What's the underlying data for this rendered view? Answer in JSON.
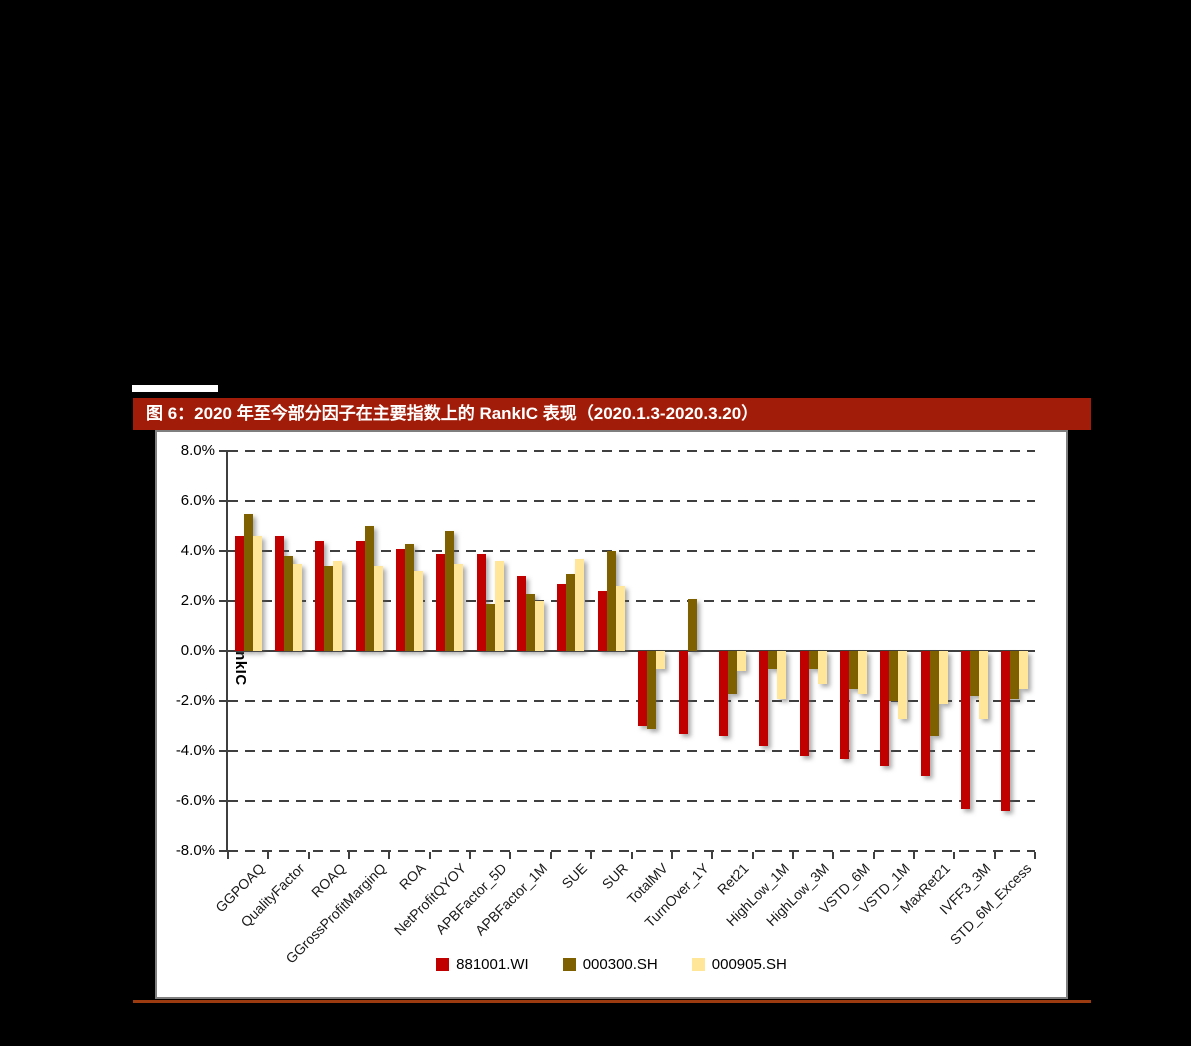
{
  "figure": {
    "title": "图 6：2020 年至今部分因子在主要指数上的 RankIC 表现（2020.1.3-2020.3.20）"
  },
  "chart_data": {
    "type": "bar",
    "title": "2020 年至今部分因子在主要指数上的 RankIC 表现（2020.1.3-2020.3.20）",
    "xlabel": "",
    "ylabel": "RankIC",
    "unit": "percent",
    "ylim": [
      -8,
      8
    ],
    "ytick_labels": [
      "8.0%",
      "6.0%",
      "4.0%",
      "2.0%",
      "0.0%",
      "-2.0%",
      "-4.0%",
      "-6.0%",
      "-8.0%"
    ],
    "grid": "horizontal-dashed",
    "legend_position": "bottom",
    "categories": [
      "GGPOAQ",
      "QualityFactor",
      "ROAQ",
      "GGrossProfitMarginQ",
      "ROA",
      "NetProfitQYOY",
      "APBFactor_5D",
      "APBFactor_1M",
      "SUE",
      "SUR",
      "TotalMV",
      "TurnOver_1Y",
      "Ret21",
      "HighLow_1M",
      "HighLow_3M",
      "VSTD_6M",
      "VSTD_1M",
      "MaxRet21",
      "IVFF3_3M",
      "STD_6M_Excess"
    ],
    "series": [
      {
        "name": "881001.WI",
        "color": "#C00000",
        "values": [
          4.6,
          4.6,
          4.4,
          4.4,
          4.1,
          3.9,
          3.9,
          3.0,
          2.7,
          2.4,
          -3.0,
          -3.3,
          -3.4,
          -3.8,
          -4.2,
          -4.3,
          -4.6,
          -5.0,
          -6.3,
          -6.4
        ]
      },
      {
        "name": "000300.SH",
        "color": "#7F6000",
        "values": [
          5.5,
          3.8,
          3.4,
          5.0,
          4.3,
          4.8,
          1.9,
          2.3,
          3.1,
          4.0,
          -3.1,
          2.1,
          -1.7,
          -0.7,
          -0.7,
          -1.5,
          -2.0,
          -3.4,
          -1.8,
          -1.9
        ]
      },
      {
        "name": "000905.SH",
        "color": "#FFE699",
        "values": [
          4.6,
          3.5,
          3.6,
          3.4,
          3.2,
          3.5,
          3.6,
          2.0,
          3.7,
          2.6,
          -0.7,
          0.0,
          -0.8,
          -1.9,
          -1.3,
          -1.7,
          -2.7,
          -2.1,
          -2.7,
          -1.5
        ]
      }
    ]
  }
}
